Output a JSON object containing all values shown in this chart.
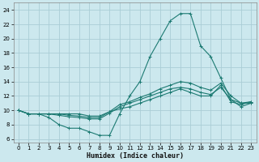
{
  "bg_color": "#cce8ee",
  "grid_color": "#aacdd6",
  "line_color": "#1c7a72",
  "xlabel": "Humidex (Indice chaleur)",
  "xlim": [
    -0.5,
    23.5
  ],
  "ylim": [
    5.5,
    25.0
  ],
  "xticks": [
    0,
    1,
    2,
    3,
    4,
    5,
    6,
    7,
    8,
    9,
    10,
    11,
    12,
    13,
    14,
    15,
    16,
    17,
    18,
    19,
    20,
    21,
    22,
    23
  ],
  "yticks": [
    6,
    8,
    10,
    12,
    14,
    16,
    18,
    20,
    22,
    24
  ],
  "series": [
    [
      10.0,
      9.5,
      9.5,
      9.0,
      8.0,
      7.5,
      7.5,
      7.0,
      6.5,
      6.5,
      9.5,
      12.0,
      14.0,
      17.5,
      20.0,
      22.5,
      23.5,
      23.5,
      19.0,
      17.5,
      14.5,
      11.5,
      11.0,
      11.0
    ],
    [
      10.0,
      9.5,
      9.5,
      9.5,
      9.5,
      9.3,
      9.2,
      9.0,
      9.0,
      9.8,
      10.2,
      10.5,
      11.0,
      11.5,
      12.0,
      12.5,
      13.0,
      12.5,
      12.0,
      12.0,
      13.5,
      11.2,
      10.8,
      11.2
    ],
    [
      10.0,
      9.5,
      9.5,
      9.5,
      9.3,
      9.1,
      9.0,
      8.8,
      8.8,
      9.6,
      10.5,
      11.0,
      11.5,
      12.0,
      12.5,
      13.0,
      13.2,
      13.0,
      12.5,
      12.2,
      13.2,
      11.5,
      10.5,
      11.0
    ],
    [
      10.0,
      9.5,
      9.5,
      9.5,
      9.5,
      9.5,
      9.5,
      9.2,
      9.2,
      9.8,
      10.8,
      11.2,
      11.8,
      12.3,
      13.0,
      13.5,
      14.0,
      13.8,
      13.2,
      12.8,
      13.8,
      12.0,
      11.0,
      11.2
    ]
  ]
}
